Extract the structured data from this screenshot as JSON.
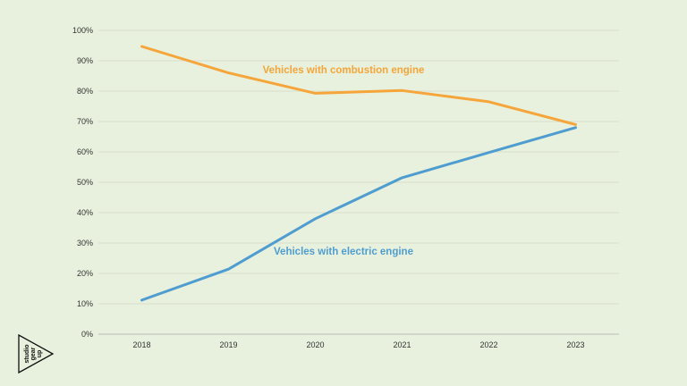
{
  "chart_data": {
    "type": "line",
    "title": "",
    "xlabel": "",
    "ylabel": "",
    "x": [
      "2018",
      "2019",
      "2020",
      "2021",
      "2022",
      "2023"
    ],
    "y_ticks": [
      "0%",
      "10%",
      "20%",
      "30%",
      "40%",
      "50%",
      "60%",
      "70%",
      "80%",
      "90%",
      "100%"
    ],
    "ylim": [
      0,
      100
    ],
    "grid": true,
    "legend": "inline-labels",
    "series": [
      {
        "name": "Vehicles with combustion engine",
        "color": "#f5a53a",
        "values": [
          94.7,
          86.0,
          79.3,
          80.2,
          76.5,
          69.0
        ]
      },
      {
        "name": "Vehicles with electric engine",
        "color": "#4f9dd0",
        "values": [
          11.2,
          21.4,
          38.0,
          51.5,
          59.8,
          68.0
        ]
      }
    ]
  },
  "logo": {
    "icon": "triangle-logo-icon",
    "lines": [
      "studio",
      "gear",
      "up"
    ]
  }
}
